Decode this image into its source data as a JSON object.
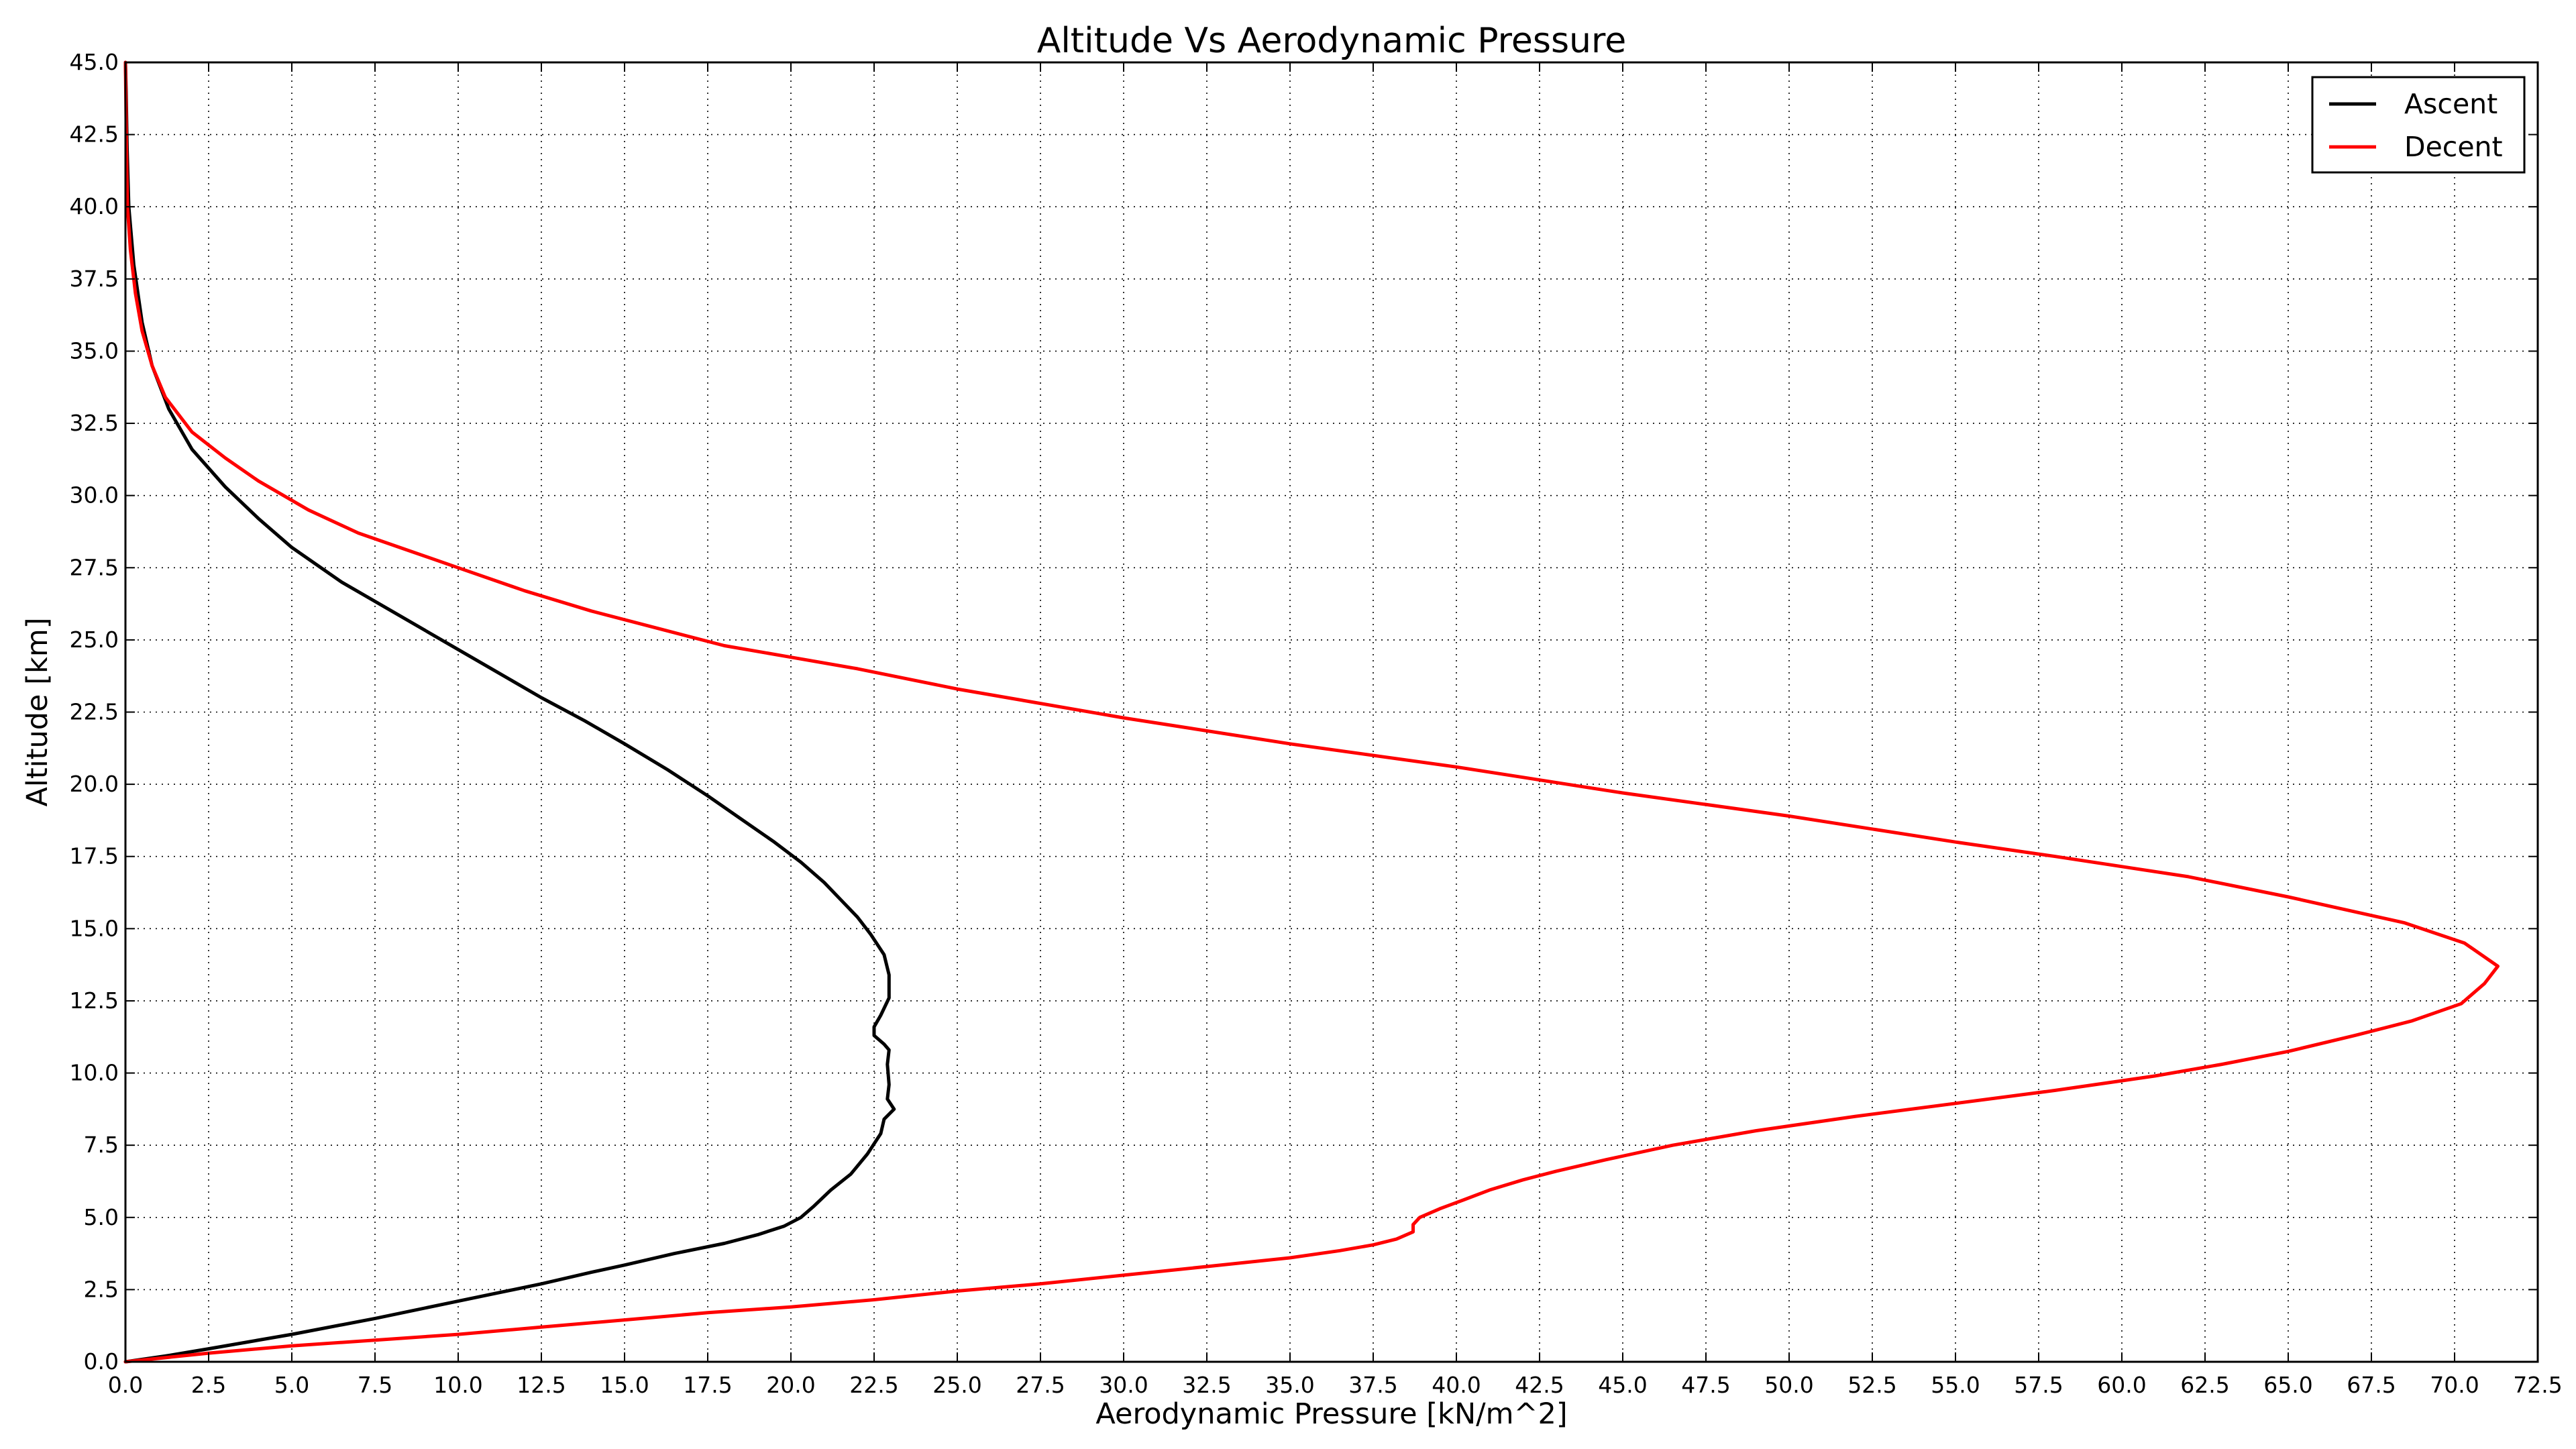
{
  "chart_data": {
    "type": "line",
    "title": "Altitude Vs Aerodynamic Pressure",
    "xlabel": "Aerodynamic Pressure [kN/m^2]",
    "ylabel": "Altitude [km]",
    "xlim": [
      0,
      72.5
    ],
    "ylim": [
      0,
      45
    ],
    "xticks": [
      "0.0",
      "2.5",
      "5.0",
      "7.5",
      "10.0",
      "12.5",
      "15.0",
      "17.5",
      "20.0",
      "22.5",
      "25.0",
      "27.5",
      "30.0",
      "32.5",
      "35.0",
      "37.5",
      "40.0",
      "42.5",
      "45.0",
      "47.5",
      "50.0",
      "52.5",
      "55.0",
      "57.5",
      "60.0",
      "62.5",
      "65.0",
      "67.5",
      "70.0",
      "72.5"
    ],
    "yticks": [
      "0.0",
      "2.5",
      "5.0",
      "7.5",
      "10.0",
      "12.5",
      "15.0",
      "17.5",
      "20.0",
      "22.5",
      "25.0",
      "27.5",
      "30.0",
      "32.5",
      "35.0",
      "37.5",
      "40.0",
      "42.5",
      "45.0"
    ],
    "grid": true,
    "legend_position": "top-right",
    "series": [
      {
        "name": "Ascent",
        "color": "#000000",
        "points": [
          [
            0,
            0
          ],
          [
            1.2,
            0.2
          ],
          [
            2.5,
            0.45
          ],
          [
            5,
            0.95
          ],
          [
            7.5,
            1.5
          ],
          [
            10,
            2.1
          ],
          [
            12.5,
            2.7
          ],
          [
            14,
            3.1
          ],
          [
            15,
            3.35
          ],
          [
            16.5,
            3.75
          ],
          [
            18,
            4.1
          ],
          [
            19,
            4.4
          ],
          [
            19.8,
            4.7
          ],
          [
            20.3,
            5.0
          ],
          [
            20.7,
            5.4
          ],
          [
            21.2,
            5.95
          ],
          [
            21.8,
            6.5
          ],
          [
            22.3,
            7.2
          ],
          [
            22.7,
            7.9
          ],
          [
            22.8,
            8.4
          ],
          [
            23.1,
            8.75
          ],
          [
            22.9,
            9.1
          ],
          [
            22.95,
            9.6
          ],
          [
            22.9,
            10.3
          ],
          [
            22.95,
            10.8
          ],
          [
            22.8,
            11.0
          ],
          [
            22.5,
            11.3
          ],
          [
            22.5,
            11.6
          ],
          [
            22.7,
            12.0
          ],
          [
            22.95,
            12.6
          ],
          [
            22.95,
            13.4
          ],
          [
            22.8,
            14.1
          ],
          [
            22.4,
            14.8
          ],
          [
            22.0,
            15.4
          ],
          [
            21.5,
            16.0
          ],
          [
            21.0,
            16.6
          ],
          [
            20.3,
            17.3
          ],
          [
            19.5,
            18.0
          ],
          [
            18.5,
            18.8
          ],
          [
            17.5,
            19.6
          ],
          [
            16.3,
            20.5
          ],
          [
            15,
            21.4
          ],
          [
            13.8,
            22.2
          ],
          [
            12.5,
            23.0
          ],
          [
            11,
            24.0
          ],
          [
            9.5,
            25.0
          ],
          [
            8,
            26.0
          ],
          [
            6.5,
            27.0
          ],
          [
            5,
            28.2
          ],
          [
            4,
            29.2
          ],
          [
            3,
            30.3
          ],
          [
            2,
            31.6
          ],
          [
            1.3,
            33.0
          ],
          [
            0.8,
            34.5
          ],
          [
            0.5,
            36
          ],
          [
            0.25,
            38
          ],
          [
            0.1,
            40
          ],
          [
            0.05,
            42
          ],
          [
            0.02,
            44
          ],
          [
            0,
            45
          ]
        ]
      },
      {
        "name": "Decent",
        "color": "#ff0000",
        "points": [
          [
            0,
            0
          ],
          [
            2.5,
            0.3
          ],
          [
            5,
            0.55
          ],
          [
            7.5,
            0.75
          ],
          [
            10,
            0.95
          ],
          [
            12.5,
            1.2
          ],
          [
            15,
            1.45
          ],
          [
            17.5,
            1.7
          ],
          [
            20,
            1.9
          ],
          [
            22.5,
            2.15
          ],
          [
            25,
            2.45
          ],
          [
            27.5,
            2.7
          ],
          [
            30,
            3.0
          ],
          [
            32.5,
            3.3
          ],
          [
            35,
            3.6
          ],
          [
            36.5,
            3.85
          ],
          [
            37.5,
            4.05
          ],
          [
            38.2,
            4.25
          ],
          [
            38.7,
            4.5
          ],
          [
            38.7,
            4.75
          ],
          [
            38.9,
            5.0
          ],
          [
            39.5,
            5.3
          ],
          [
            40.2,
            5.6
          ],
          [
            41,
            5.95
          ],
          [
            42,
            6.3
          ],
          [
            43,
            6.6
          ],
          [
            44.5,
            7.0
          ],
          [
            46.5,
            7.5
          ],
          [
            49,
            8.0
          ],
          [
            52,
            8.5
          ],
          [
            55,
            8.95
          ],
          [
            58,
            9.4
          ],
          [
            61,
            9.9
          ],
          [
            63,
            10.3
          ],
          [
            65,
            10.75
          ],
          [
            67,
            11.3
          ],
          [
            68.7,
            11.8
          ],
          [
            70.2,
            12.4
          ],
          [
            70.9,
            13.1
          ],
          [
            71.3,
            13.7
          ],
          [
            70.3,
            14.5
          ],
          [
            68.5,
            15.2
          ],
          [
            65,
            16.1
          ],
          [
            62,
            16.8
          ],
          [
            58,
            17.5
          ],
          [
            55,
            18.0
          ],
          [
            50,
            18.9
          ],
          [
            45,
            19.7
          ],
          [
            40,
            20.6
          ],
          [
            35,
            21.4
          ],
          [
            30,
            22.3
          ],
          [
            25,
            23.3
          ],
          [
            22,
            24.0
          ],
          [
            20,
            24.4
          ],
          [
            18,
            24.8
          ],
          [
            16,
            25.4
          ],
          [
            14,
            26.0
          ],
          [
            12,
            26.7
          ],
          [
            10,
            27.5
          ],
          [
            8.5,
            28.1
          ],
          [
            7,
            28.7
          ],
          [
            5.5,
            29.5
          ],
          [
            4,
            30.5
          ],
          [
            3,
            31.3
          ],
          [
            2,
            32.2
          ],
          [
            1.2,
            33.4
          ],
          [
            0.8,
            34.5
          ],
          [
            0.5,
            35.7
          ],
          [
            0.3,
            37
          ],
          [
            0.15,
            38.5
          ],
          [
            0.06,
            40
          ],
          [
            0.03,
            42
          ],
          [
            0.01,
            44
          ],
          [
            0,
            45
          ]
        ]
      }
    ]
  }
}
